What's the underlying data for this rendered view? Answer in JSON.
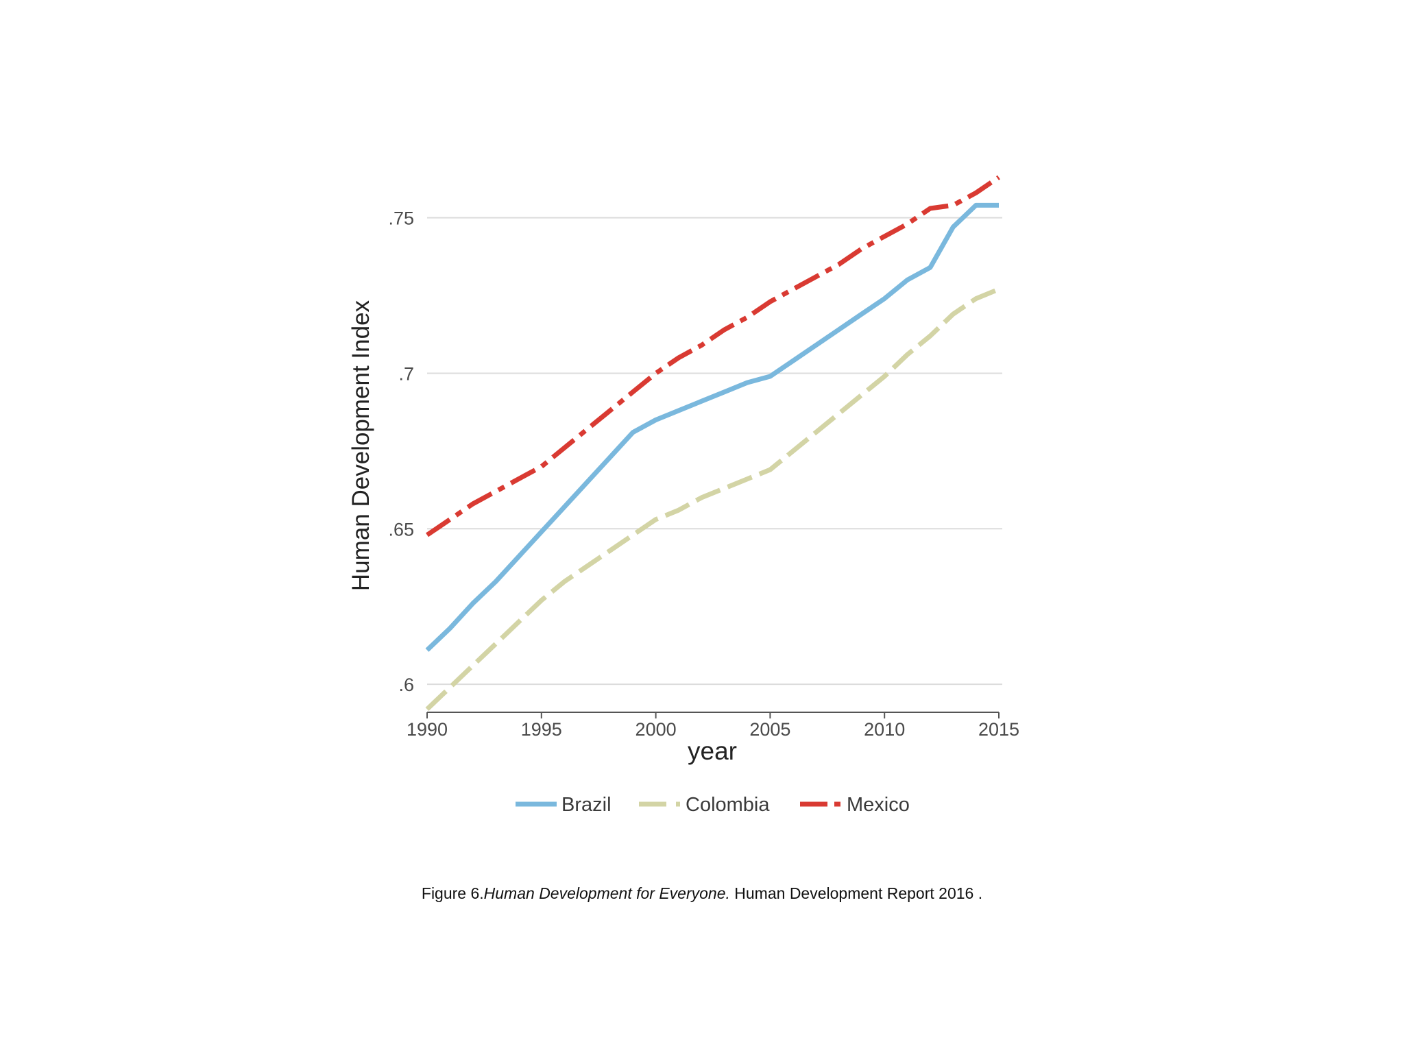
{
  "chart_data": {
    "type": "line",
    "title": "",
    "xlabel": "year",
    "ylabel": "Human Development Index",
    "xlim": [
      1990,
      2015
    ],
    "ylim": [
      0.591,
      0.766
    ],
    "x_ticks": [
      1990,
      1995,
      2000,
      2005,
      2010,
      2015
    ],
    "x_tick_labels": [
      "1990",
      "1995",
      "2000",
      "2005",
      "2010",
      "2015"
    ],
    "y_ticks": [
      0.6,
      0.65,
      0.7,
      0.75
    ],
    "y_tick_labels": [
      ".6",
      ".65",
      ".7",
      ".75"
    ],
    "grid": "horizontal",
    "legend_position": "bottom",
    "x": [
      1990,
      1991,
      1992,
      1993,
      1994,
      1995,
      1996,
      1997,
      1998,
      1999,
      2000,
      2001,
      2002,
      2003,
      2004,
      2005,
      2006,
      2007,
      2008,
      2009,
      2010,
      2011,
      2012,
      2013,
      2014,
      2015
    ],
    "series": [
      {
        "name": "Brazil",
        "color": "#7ab8dd",
        "style": "solid",
        "values": [
          0.611,
          0.618,
          0.626,
          0.633,
          0.641,
          0.649,
          0.657,
          0.665,
          0.673,
          0.681,
          0.685,
          0.688,
          0.691,
          0.694,
          0.697,
          0.699,
          0.704,
          0.709,
          0.714,
          0.719,
          0.724,
          0.73,
          0.734,
          0.747,
          0.754,
          0.754
        ]
      },
      {
        "name": "Colombia",
        "color": "#d3d4a5",
        "style": "dashed",
        "values": [
          0.592,
          0.599,
          0.606,
          0.613,
          0.62,
          0.627,
          0.633,
          0.638,
          0.643,
          0.648,
          0.653,
          0.656,
          0.66,
          0.663,
          0.666,
          0.669,
          0.675,
          0.681,
          0.687,
          0.693,
          0.699,
          0.706,
          0.712,
          0.719,
          0.724,
          0.727
        ]
      },
      {
        "name": "Mexico",
        "color": "#d93a32",
        "style": "dash-dot",
        "values": [
          0.648,
          0.653,
          0.658,
          0.662,
          0.666,
          0.67,
          0.676,
          0.682,
          0.688,
          0.694,
          0.7,
          0.705,
          0.709,
          0.714,
          0.718,
          0.723,
          0.727,
          0.731,
          0.735,
          0.74,
          0.744,
          0.748,
          0.753,
          0.754,
          0.758,
          0.763
        ]
      }
    ]
  },
  "caption": {
    "prefix": "Figure 6.",
    "title": "Human Development for Everyone.",
    "suffix": " Human Development Report 2016 ."
  }
}
